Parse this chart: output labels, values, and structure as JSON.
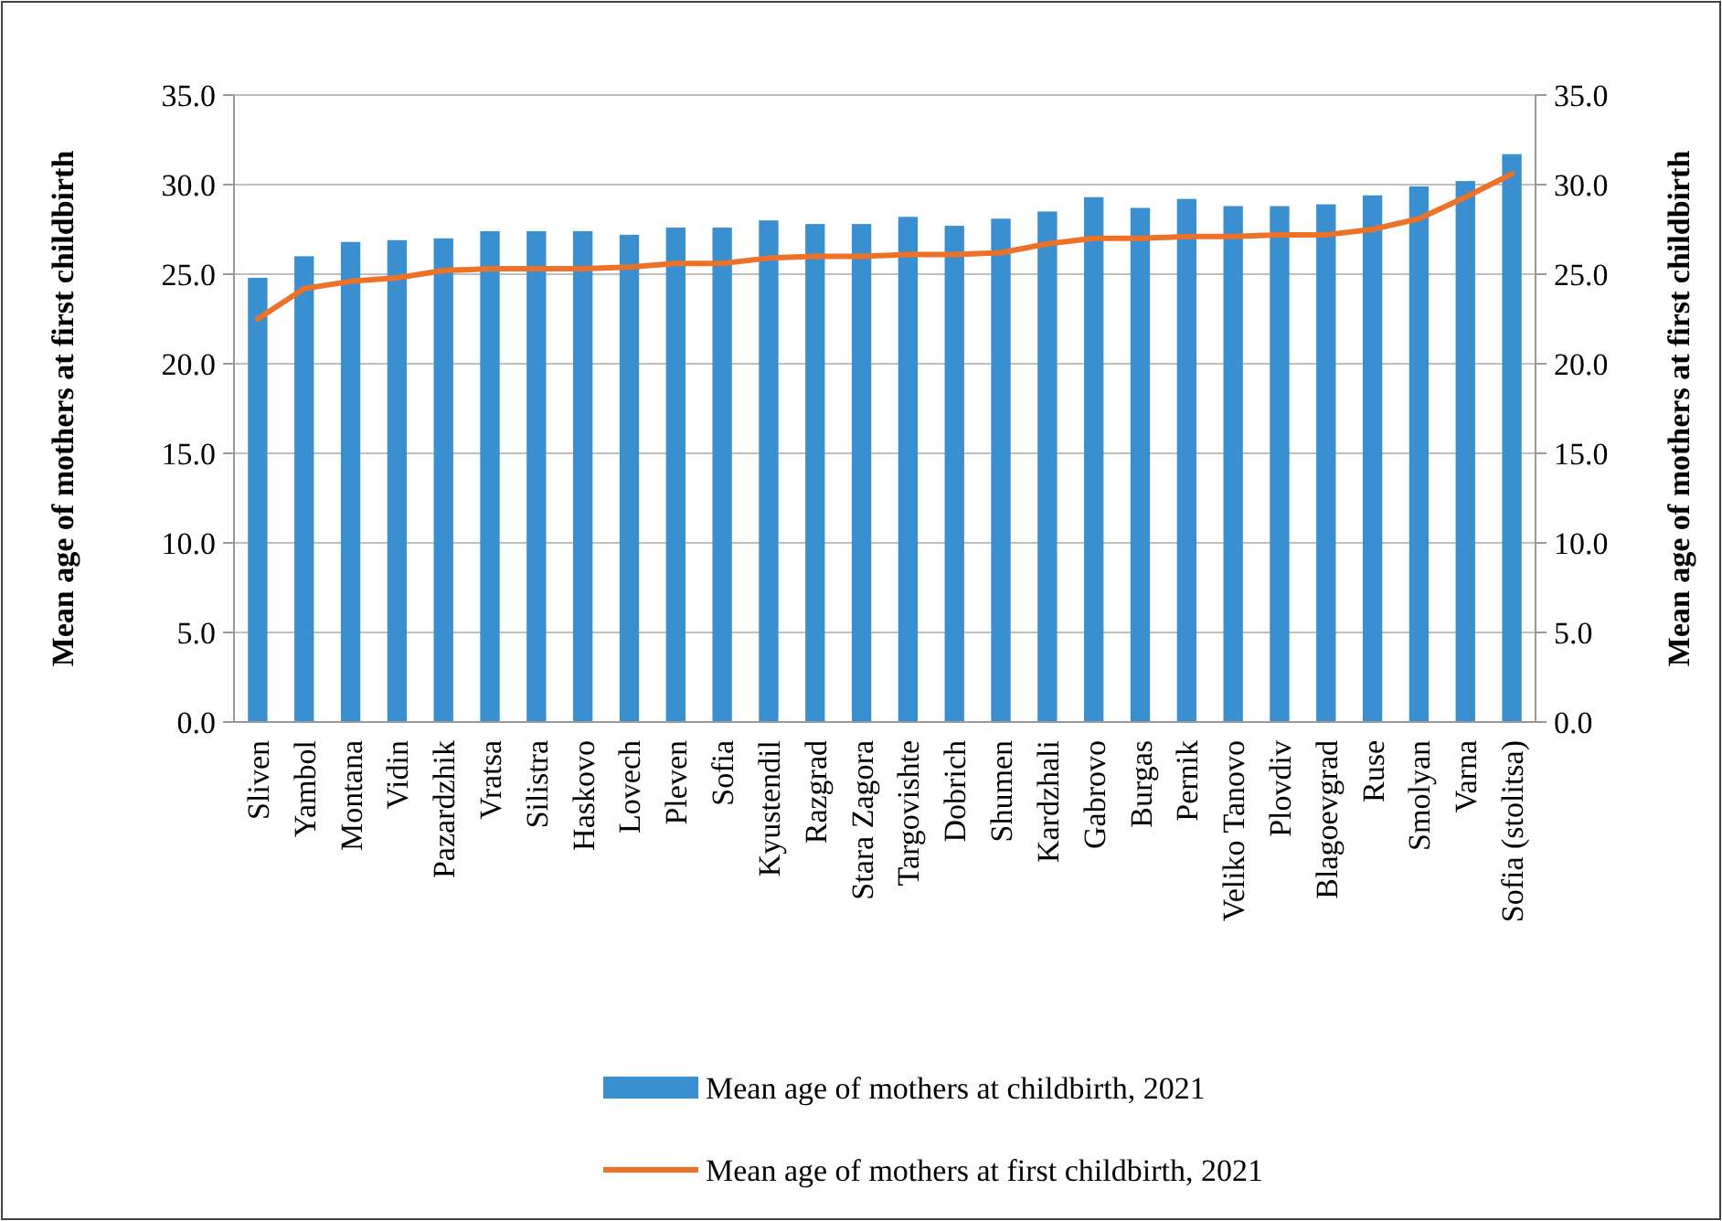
{
  "chart_data": {
    "type": "bar",
    "ylabel": "Mean age of mothers at first childbirth",
    "y2label": "Mean age of mothers at first childbirth",
    "categories": [
      "Sliven",
      "Yambol",
      "Montana",
      "Vidin",
      "Pazardzhik",
      "Vratsa",
      "Silistra",
      "Haskovo",
      "Lovech",
      "Pleven",
      "Sofia",
      "Kyustendil",
      "Razgrad",
      "Stara Zagora",
      "Targovishte",
      "Dobrich",
      "Shumen",
      "Kardzhali",
      "Gabrovo",
      "Burgas",
      "Pernik",
      "Veliko Tanovo",
      "Plovdiv",
      "Blagoevgrad",
      "Ruse",
      "Smolyan",
      "Varna",
      "Sofia (stolitsa)"
    ],
    "series": [
      {
        "name": "Mean age of mothers at childbirth, 2021",
        "color": "#3a8fd0",
        "values": [
          24.8,
          26.0,
          26.8,
          26.9,
          27.0,
          27.4,
          27.4,
          27.4,
          27.2,
          27.6,
          27.6,
          28.0,
          27.8,
          27.8,
          28.2,
          27.7,
          28.1,
          28.5,
          29.3,
          28.7,
          29.2,
          28.8,
          28.8,
          28.9,
          29.4,
          29.9,
          30.2,
          31.7
        ]
      },
      {
        "name": "Mean age of mothers at first childbirth, 2021",
        "type": "line",
        "color": "#ed7228",
        "values": [
          22.5,
          24.2,
          24.6,
          24.8,
          25.2,
          25.3,
          25.3,
          25.3,
          25.4,
          25.6,
          25.6,
          25.9,
          26.0,
          26.0,
          26.1,
          26.1,
          26.2,
          26.7,
          27.0,
          27.0,
          27.1,
          27.1,
          27.2,
          27.2,
          27.5,
          28.1,
          29.3,
          30.6
        ]
      }
    ],
    "ylim": [
      0,
      35
    ],
    "yticks": [
      {
        "value": 0,
        "label": "0.0"
      },
      {
        "value": 5,
        "label": "5.0"
      },
      {
        "value": 10,
        "label": "10.0"
      },
      {
        "value": 15,
        "label": "15.0"
      },
      {
        "value": 20,
        "label": "20.0"
      },
      {
        "value": 25,
        "label": "25.0"
      },
      {
        "value": 30,
        "label": "30.0"
      },
      {
        "value": 35,
        "label": "35.0"
      }
    ],
    "y2lim": [
      0,
      35
    ],
    "y2ticks": [
      {
        "value": 0,
        "label": "0.0"
      },
      {
        "value": 5,
        "label": "5.0"
      },
      {
        "value": 10,
        "label": "10.0"
      },
      {
        "value": 15,
        "label": "15.0"
      },
      {
        "value": 20,
        "label": "20.0"
      },
      {
        "value": 25,
        "label": "25.0"
      },
      {
        "value": 30,
        "label": "30.0"
      },
      {
        "value": 35,
        "label": "35.0"
      }
    ],
    "grid": "y",
    "legend": "bottom"
  }
}
